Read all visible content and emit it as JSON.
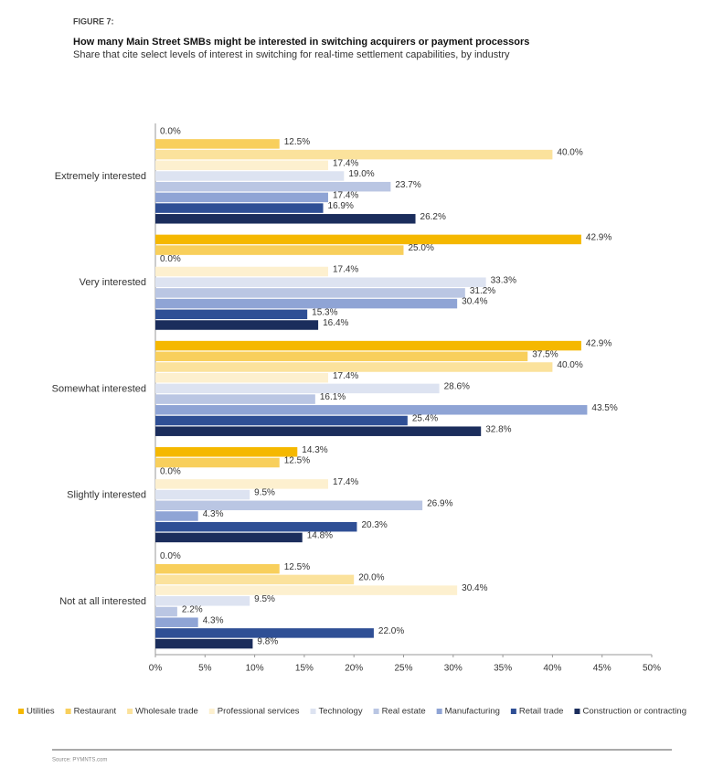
{
  "chart_data": {
    "type": "bar",
    "orientation": "horizontal",
    "figure_label": "FIGURE 7:",
    "title": "How many Main Street SMBs might be interested in switching acquirers or payment processors",
    "subtitle": "Share that cite select levels of interest in switching for real-time settlement capabilities, by industry",
    "source": "Source: PYMNTS.com",
    "categories": [
      "Extremely interested",
      "Very interested",
      "Somewhat interested",
      "Slightly interested",
      "Not at all interested"
    ],
    "series": [
      {
        "name": "Utilities",
        "color": "#f5b800",
        "values": [
          0.0,
          42.9,
          42.9,
          14.3,
          0.0
        ],
        "value_labels": [
          "0.0%",
          "42.9%",
          "42.9%",
          "14.3%",
          "0.0%"
        ]
      },
      {
        "name": "Restaurant",
        "color": "#f8cf5c",
        "values": [
          12.5,
          25.0,
          37.5,
          12.5,
          12.5
        ],
        "value_labels": [
          "12.5%",
          "25.0%",
          "37.5%",
          "12.5%",
          "12.5%"
        ]
      },
      {
        "name": "Wholesale trade",
        "color": "#fbe29c",
        "values": [
          40.0,
          0.0,
          40.0,
          0.0,
          20.0
        ],
        "value_labels": [
          "40.0%",
          "0.0%",
          "40.0%",
          "0.0%",
          "20.0%"
        ]
      },
      {
        "name": "Professional services",
        "color": "#fdf0cf",
        "values": [
          17.4,
          17.4,
          17.4,
          17.4,
          30.4
        ],
        "value_labels": [
          "17.4%",
          "17.4%",
          "17.4%",
          "17.4%",
          "30.4%"
        ]
      },
      {
        "name": "Technology",
        "color": "#dde3f1",
        "values": [
          19.0,
          33.3,
          28.6,
          9.5,
          9.5
        ],
        "value_labels": [
          "19.0%",
          "33.3%",
          "28.6%",
          "9.5%",
          "9.5%"
        ]
      },
      {
        "name": "Real estate",
        "color": "#bac6e3",
        "values": [
          23.7,
          31.2,
          16.1,
          26.9,
          2.2
        ],
        "value_labels": [
          "23.7%",
          "31.2%",
          "16.1%",
          "26.9%",
          "2.2%"
        ]
      },
      {
        "name": "Manufacturing",
        "color": "#8fa4d5",
        "values": [
          17.4,
          30.4,
          43.5,
          4.3,
          4.3
        ],
        "value_labels": [
          "17.4%",
          "30.4%",
          "43.5%",
          "4.3%",
          "4.3%"
        ]
      },
      {
        "name": "Retail trade",
        "color": "#2f4f95",
        "values": [
          16.9,
          15.3,
          25.4,
          20.3,
          22.0
        ],
        "value_labels": [
          "16.9%",
          "15.3%",
          "25.4%",
          "20.3%",
          "22.0%"
        ]
      },
      {
        "name": "Construction or contracting",
        "color": "#1b2d5c",
        "values": [
          26.2,
          16.4,
          32.8,
          14.8,
          9.8
        ],
        "value_labels": [
          "26.2%",
          "16.4%",
          "32.8%",
          "14.8%",
          "9.8%"
        ]
      }
    ],
    "xlim": [
      0,
      50
    ],
    "xticks": [
      {
        "value": 0,
        "label": "0%"
      },
      {
        "value": 5,
        "label": "5%"
      },
      {
        "value": 10,
        "label": "10%"
      },
      {
        "value": 15,
        "label": "15%"
      },
      {
        "value": 20,
        "label": "20%"
      },
      {
        "value": 25,
        "label": "25%"
      },
      {
        "value": 30,
        "label": "30%"
      },
      {
        "value": 35,
        "label": "35%"
      },
      {
        "value": 40,
        "label": "40%"
      },
      {
        "value": 45,
        "label": "45%"
      },
      {
        "value": 50,
        "label": "50%"
      }
    ],
    "grid": false,
    "legend": "bottom"
  }
}
